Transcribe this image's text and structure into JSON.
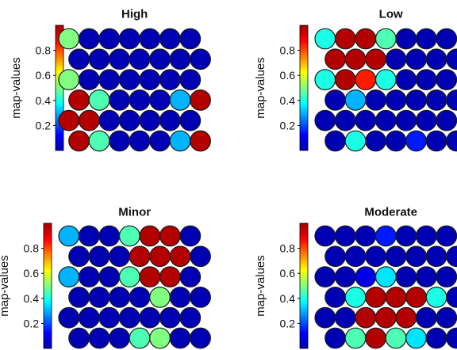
{
  "chart_data": [
    {
      "type": "heatmap",
      "title": "High",
      "colorbar_label": "map-values",
      "colorbar_ticks": [
        "0.2",
        "0.4",
        "0.6",
        "0.8"
      ],
      "colorbar_range": [
        0,
        1
      ],
      "grid": [
        [
          0.5,
          0.05,
          0.05,
          0.05,
          0.05,
          0.05,
          0.05
        ],
        [
          0.05,
          0.05,
          0.05,
          0.05,
          0.05,
          0.05,
          0.05
        ],
        [
          0.5,
          0.05,
          0.05,
          0.05,
          0.05,
          0.05,
          0.05
        ],
        [
          0.95,
          0.45,
          0.05,
          0.05,
          0.05,
          0.3,
          0.95
        ],
        [
          0.95,
          0.95,
          0.05,
          0.05,
          0.05,
          0.05,
          0.05
        ],
        [
          0.95,
          0.45,
          0.05,
          0.05,
          0.05,
          0.3,
          0.95
        ]
      ]
    },
    {
      "type": "heatmap",
      "title": "Low",
      "colorbar_label": "map-values",
      "colorbar_ticks": [
        "0.2",
        "0.4",
        "0.6",
        "0.8"
      ],
      "colorbar_range": [
        0,
        1
      ],
      "grid": [
        [
          0.4,
          0.95,
          0.95,
          0.45,
          0.05,
          0.05,
          0.05
        ],
        [
          0.95,
          0.95,
          0.95,
          0.05,
          0.05,
          0.05,
          0.05
        ],
        [
          0.4,
          0.95,
          0.85,
          0.4,
          0.05,
          0.05,
          0.05
        ],
        [
          0.05,
          0.3,
          0.05,
          0.05,
          0.05,
          0.05,
          0.05
        ],
        [
          0.05,
          0.05,
          0.05,
          0.05,
          0.05,
          0.05,
          0.05
        ],
        [
          0.05,
          0.4,
          0.05,
          0.05,
          0.15,
          0.05,
          0.05
        ]
      ]
    },
    {
      "type": "heatmap",
      "title": "Minor",
      "colorbar_label": "map-values",
      "colorbar_ticks": [
        "0.2",
        "0.4",
        "0.6",
        "0.8"
      ],
      "colorbar_range": [
        0,
        1
      ],
      "grid": [
        [
          0.3,
          0.05,
          0.05,
          0.45,
          0.95,
          0.95,
          0.05
        ],
        [
          0.05,
          0.05,
          0.05,
          0.95,
          0.95,
          0.95,
          0.05
        ],
        [
          0.3,
          0.05,
          0.05,
          0.45,
          0.95,
          0.95,
          0.05
        ],
        [
          0.05,
          0.05,
          0.05,
          0.05,
          0.5,
          0.05,
          0.05
        ],
        [
          0.05,
          0.05,
          0.05,
          0.05,
          0.05,
          0.05,
          0.05
        ],
        [
          0.05,
          0.05,
          0.05,
          0.45,
          0.5,
          0.05,
          0.05
        ]
      ]
    },
    {
      "type": "heatmap",
      "title": "Moderate",
      "colorbar_label": "map-values",
      "colorbar_ticks": [
        "0.2",
        "0.4",
        "0.6",
        "0.8"
      ],
      "colorbar_range": [
        0,
        1
      ],
      "grid": [
        [
          0.05,
          0.05,
          0.05,
          0.15,
          0.05,
          0.05,
          0.05
        ],
        [
          0.05,
          0.05,
          0.05,
          0.05,
          0.05,
          0.05,
          0.05
        ],
        [
          0.05,
          0.05,
          0.1,
          0.35,
          0.05,
          0.05,
          0.05
        ],
        [
          0.05,
          0.4,
          0.95,
          0.95,
          0.95,
          0.4,
          0.05
        ],
        [
          0.05,
          0.05,
          0.95,
          0.95,
          0.95,
          0.05,
          0.05
        ],
        [
          0.05,
          0.45,
          0.95,
          0.45,
          0.35,
          0.05,
          0.05
        ]
      ]
    }
  ]
}
